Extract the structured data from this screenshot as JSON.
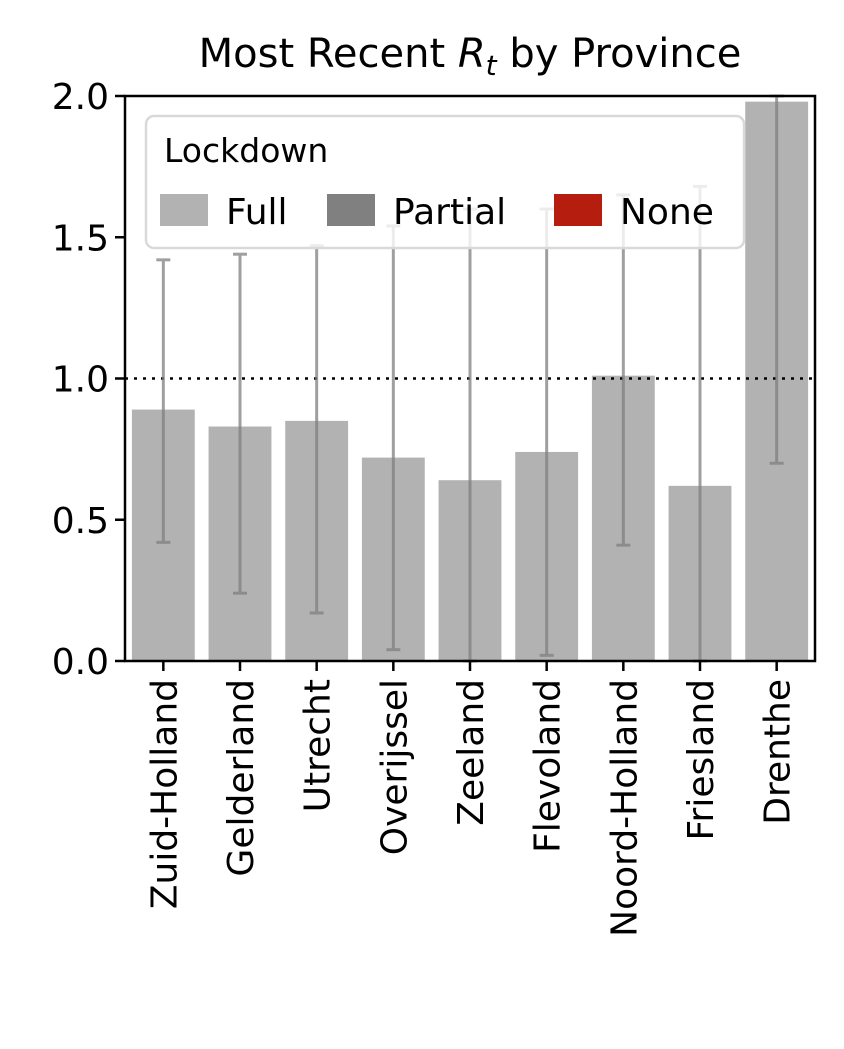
{
  "chart_data": {
    "type": "bar",
    "title": "Most Recent R_t by Province",
    "title_parts": {
      "before": "Most Recent ",
      "symbol": "R",
      "subscript": "t",
      "after": " by Province"
    },
    "categories": [
      "Zuid-Holland",
      "Gelderland",
      "Utrecht",
      "Overijssel",
      "Zeeland",
      "Flevoland",
      "Noord-Holland",
      "Friesland",
      "Drenthe"
    ],
    "values": [
      0.89,
      0.83,
      0.85,
      0.72,
      0.64,
      0.74,
      1.01,
      0.62,
      1.98
    ],
    "error_low": [
      0.42,
      0.24,
      0.17,
      0.04,
      0.0,
      0.02,
      0.41,
      0.0,
      0.7
    ],
    "error_high": [
      1.42,
      1.44,
      1.47,
      1.54,
      1.6,
      1.6,
      1.65,
      1.68,
      2.0
    ],
    "lockdown": [
      "Full",
      "Full",
      "Full",
      "Full",
      "Full",
      "Full",
      "Full",
      "Full",
      "Full"
    ],
    "ylim": [
      0,
      2.0
    ],
    "yticks": [
      "0.0",
      "0.5",
      "1.0",
      "1.5",
      "2.0"
    ],
    "reference_line": 1.0,
    "xlabel": "",
    "ylabel": "",
    "legend": {
      "title": "Lockdown",
      "placement": "top-left",
      "entries": [
        {
          "label": "Full",
          "color": "#b2b2b2"
        },
        {
          "label": "Partial",
          "color": "#808080"
        },
        {
          "label": "None",
          "color": "#b51e0e"
        }
      ]
    },
    "colors": {
      "Full": "#b2b2b2",
      "Partial": "#808080",
      "None": "#b51e0e",
      "errorbar": "#808080"
    }
  }
}
